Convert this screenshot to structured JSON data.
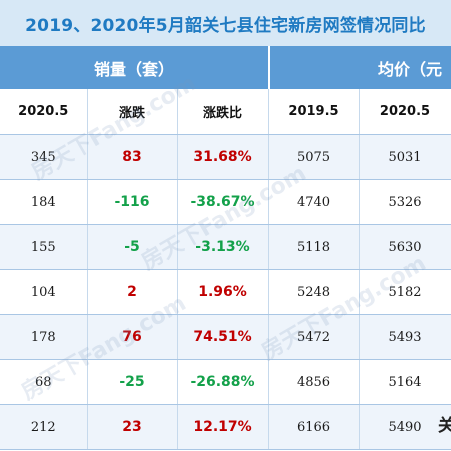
{
  "title": "2019、2020年5月韶关七县住宅新房网签情况同比",
  "groups": {
    "sales": "销量（套）",
    "price": "均价（元"
  },
  "subheaders": [
    "2020.5",
    "涨跌",
    "涨跌比",
    "2019.5",
    "2020.5"
  ],
  "rows": [
    {
      "sales_2020": "345",
      "change": "83",
      "dir": "up",
      "pct": "31.68%",
      "price_2019": "5075",
      "price_2020": "5031"
    },
    {
      "sales_2020": "184",
      "change": "-116",
      "dir": "down",
      "pct": "-38.67%",
      "price_2019": "4740",
      "price_2020": "5326"
    },
    {
      "sales_2020": "155",
      "change": "-5",
      "dir": "down",
      "pct": "-3.13%",
      "price_2019": "5118",
      "price_2020": "5630"
    },
    {
      "sales_2020": "104",
      "change": "2",
      "dir": "up",
      "pct": "1.96%",
      "price_2019": "5248",
      "price_2020": "5182"
    },
    {
      "sales_2020": "178",
      "change": "76",
      "dir": "up",
      "pct": "74.51%",
      "price_2019": "5472",
      "price_2020": "5493"
    },
    {
      "sales_2020": "68",
      "change": "-25",
      "dir": "down",
      "pct": "-26.88%",
      "price_2019": "4856",
      "price_2020": "5164"
    },
    {
      "sales_2020": "212",
      "change": "23",
      "dir": "up",
      "pct": "12.17%",
      "price_2019": "6166",
      "price_2020": "5490"
    }
  ],
  "edge_text": "关",
  "watermark": "房天下Fang.com",
  "colors": {
    "up": "#c00000",
    "down": "#13a14a",
    "header": "#5b9bd5",
    "title": "#1f7ac2"
  }
}
